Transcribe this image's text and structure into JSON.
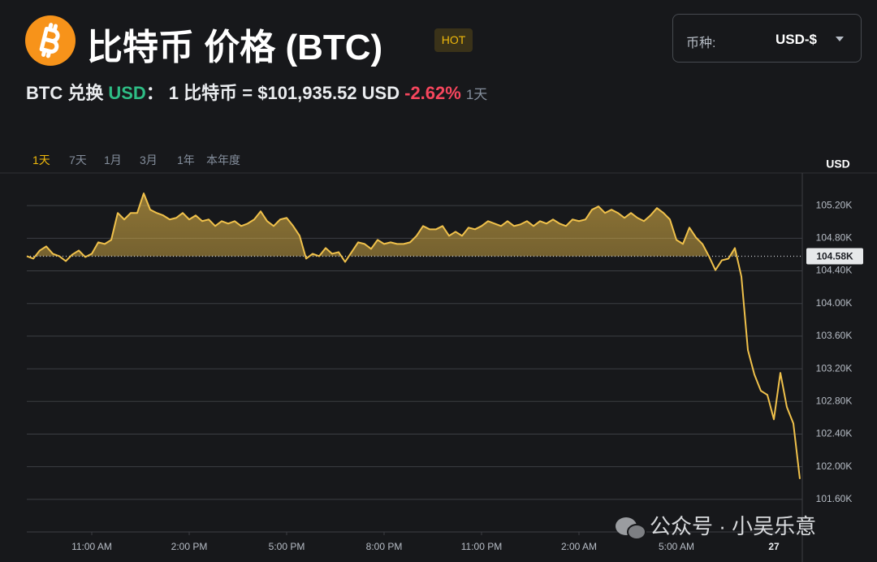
{
  "header": {
    "title": "比特币 价格 (BTC)",
    "badge": "HOT",
    "subtitle": {
      "pair": "BTC 兑换",
      "quote": "USD",
      "colon": "：",
      "rate": "1 比特币 = $101,935.52 USD",
      "change": "-2.62%",
      "period": "1天"
    }
  },
  "currency_select": {
    "label": "币种:",
    "value": "USD-$"
  },
  "range_tabs": {
    "options": [
      "1天",
      "7天",
      "1月",
      "3月",
      "1年",
      "本年度"
    ],
    "active": 0
  },
  "watermark": "公众号 · 小吴乐意",
  "chart_data": {
    "type": "line",
    "color": "#f0c14b",
    "y_label": "USD",
    "grid": true,
    "reference": {
      "value": 104580,
      "label": "104.58K"
    },
    "xlim": [
      0,
      24
    ],
    "xticks": [
      {
        "value": 2,
        "label": "11:00 AM"
      },
      {
        "value": 5,
        "label": "2:00 PM"
      },
      {
        "value": 8,
        "label": "5:00 PM"
      },
      {
        "value": 11,
        "label": "8:00 PM"
      },
      {
        "value": 14,
        "label": "11:00 PM"
      },
      {
        "value": 17,
        "label": "2:00 AM"
      },
      {
        "value": 20,
        "label": "5:00 AM"
      },
      {
        "value": 23,
        "label": "27"
      }
    ],
    "ylim": [
      101200,
      105600
    ],
    "yticks": [
      {
        "value": 101600,
        "label": "101.60K"
      },
      {
        "value": 102000,
        "label": "102.00K"
      },
      {
        "value": 102400,
        "label": "102.40K"
      },
      {
        "value": 102800,
        "label": "102.80K"
      },
      {
        "value": 103200,
        "label": "103.20K"
      },
      {
        "value": 103600,
        "label": "103.60K"
      },
      {
        "value": 104000,
        "label": "104.00K"
      },
      {
        "value": 104400,
        "label": "104.40K"
      },
      {
        "value": 104800,
        "label": "104.80K"
      },
      {
        "value": 105200,
        "label": "105.20K"
      }
    ],
    "x": [
      0,
      0.2,
      0.4,
      0.6,
      0.8,
      1,
      1.2,
      1.4,
      1.6,
      1.8,
      2,
      2.2,
      2.4,
      2.6,
      2.8,
      3,
      3.2,
      3.4,
      3.6,
      3.8,
      4,
      4.2,
      4.4,
      4.6,
      4.8,
      5,
      5.2,
      5.4,
      5.6,
      5.8,
      6,
      6.2,
      6.4,
      6.6,
      6.8,
      7,
      7.2,
      7.4,
      7.6,
      7.8,
      8,
      8.2,
      8.4,
      8.6,
      8.8,
      9,
      9.2,
      9.4,
      9.6,
      9.8,
      10,
      10.2,
      10.4,
      10.6,
      10.8,
      11,
      11.2,
      11.4,
      11.6,
      11.8,
      12,
      12.2,
      12.4,
      12.6,
      12.8,
      13,
      13.2,
      13.4,
      13.6,
      13.8,
      14,
      14.2,
      14.4,
      14.6,
      14.8,
      15,
      15.2,
      15.4,
      15.6,
      15.8,
      16,
      16.2,
      16.4,
      16.6,
      16.8,
      17,
      17.2,
      17.4,
      17.6,
      17.8,
      18,
      18.2,
      18.4,
      18.6,
      18.8,
      19,
      19.2,
      19.4,
      19.6,
      19.8,
      20,
      20.2,
      20.4,
      20.6,
      20.8,
      21,
      21.2,
      21.4,
      21.6,
      21.8,
      22,
      22.2,
      22.4,
      22.6,
      22.8,
      23,
      23.2,
      23.4,
      23.6,
      23.8
    ],
    "values": [
      104580,
      104550,
      104650,
      104700,
      104610,
      104580,
      104520,
      104600,
      104650,
      104570,
      104610,
      104750,
      104730,
      104780,
      105110,
      105030,
      105110,
      105110,
      105350,
      105150,
      105110,
      105080,
      105030,
      105050,
      105110,
      105030,
      105080,
      105010,
      105030,
      104950,
      105010,
      104980,
      105010,
      104950,
      104980,
      105030,
      105130,
      105010,
      104950,
      105030,
      105050,
      104950,
      104830,
      104550,
      104610,
      104580,
      104680,
      104610,
      104630,
      104510,
      104630,
      104750,
      104730,
      104670,
      104780,
      104730,
      104750,
      104730,
      104730,
      104750,
      104830,
      104950,
      104910,
      104910,
      104950,
      104830,
      104880,
      104830,
      104930,
      104910,
      104950,
      105010,
      104980,
      104950,
      105010,
      104950,
      104970,
      105010,
      104950,
      105010,
      104980,
      105030,
      104980,
      104950,
      105030,
      105010,
      105030,
      105150,
      105190,
      105110,
      105150,
      105110,
      105050,
      105110,
      105050,
      105010,
      105080,
      105170,
      105110,
      105030,
      104780,
      104730,
      104930,
      104810,
      104730,
      104580,
      104410,
      104530,
      104550,
      104680,
      104330,
      103430,
      103130,
      102930,
      102880,
      102580,
      103150,
      102730,
      102530,
      101850
    ]
  }
}
